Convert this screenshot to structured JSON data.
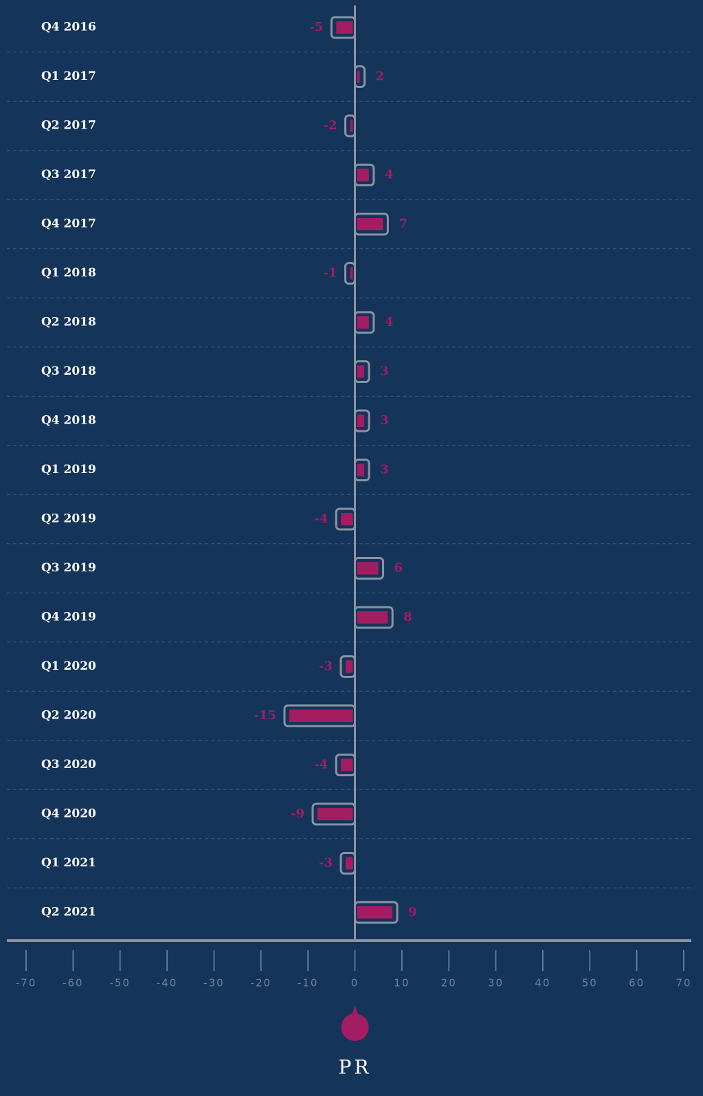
{
  "chart_data": {
    "type": "bar",
    "orientation": "horizontal",
    "categories": [
      "Q4 2016",
      "Q1 2017",
      "Q2 2017",
      "Q3 2017",
      "Q4 2017",
      "Q1 2018",
      "Q2 2018",
      "Q3 2018",
      "Q4 2018",
      "Q1 2019",
      "Q2 2019",
      "Q3 2019",
      "Q4 2019",
      "Q1 2020",
      "Q2 2020",
      "Q3 2020",
      "Q4 2020",
      "Q1 2021",
      "Q2 2021"
    ],
    "series": [
      {
        "name": "PR",
        "color": "#a31d62",
        "values": [
          -5,
          2,
          -2,
          4,
          7,
          -1,
          4,
          3,
          3,
          3,
          -4,
          6,
          8,
          -3,
          -15,
          -4,
          -9,
          -3,
          9
        ]
      }
    ],
    "xlim": [
      -70,
      70
    ],
    "xticks": [
      -70,
      -60,
      -50,
      -40,
      -30,
      -20,
      -10,
      0,
      10,
      20,
      30,
      40,
      50,
      60,
      70
    ],
    "grid": true,
    "legend": "bottom"
  }
}
